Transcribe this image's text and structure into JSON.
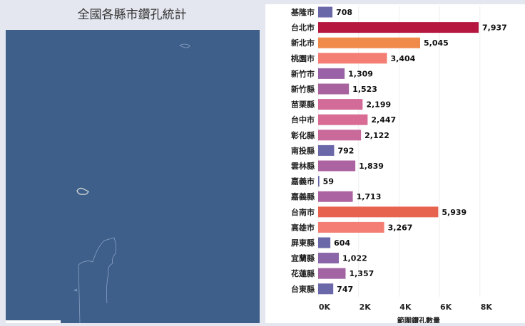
{
  "map": {
    "title": "全國各縣市鑽孔統計"
  },
  "chart_data": {
    "type": "bar",
    "orientation": "horizontal",
    "categories": [
      "基隆市",
      "台北市",
      "新北市",
      "桃園市",
      "新竹市",
      "新竹縣",
      "苗栗縣",
      "台中市",
      "彰化縣",
      "南投縣",
      "雲林縣",
      "嘉義市",
      "嘉義縣",
      "台南市",
      "高雄市",
      "屏東縣",
      "宜蘭縣",
      "花蓮縣",
      "台東縣"
    ],
    "values": [
      708,
      7937,
      5045,
      3404,
      1309,
      1523,
      2199,
      2447,
      2122,
      792,
      1839,
      59,
      1713,
      5939,
      3267,
      604,
      1022,
      1357,
      747
    ],
    "value_labels": [
      "708",
      "7,937",
      "5,045",
      "3,404",
      "1,309",
      "1,523",
      "2,199",
      "2,447",
      "2,122",
      "792",
      "1,839",
      "59",
      "1,713",
      "5,939",
      "3,267",
      "604",
      "1,022",
      "1,357",
      "747"
    ],
    "colors": [
      "#6a68a8",
      "#b5173f",
      "#f08a4b",
      "#f47e74",
      "#9a62a6",
      "#a8639f",
      "#d26b98",
      "#d86c94",
      "#c96a9a",
      "#6a68a8",
      "#ac63a1",
      "#6a68a8",
      "#ac63a1",
      "#e8634e",
      "#f47e74",
      "#6a68a8",
      "#8a66a8",
      "#a264a2",
      "#6a68a8"
    ],
    "xlim": [
      0,
      10000
    ],
    "xticks": [
      {
        "value": 0,
        "label": "0K"
      },
      {
        "value": 2000,
        "label": "2K"
      },
      {
        "value": 4000,
        "label": "4K"
      },
      {
        "value": 6000,
        "label": "6K"
      },
      {
        "value": 8000,
        "label": "8K"
      }
    ],
    "xlabel": "範圍鑽孔數量"
  }
}
